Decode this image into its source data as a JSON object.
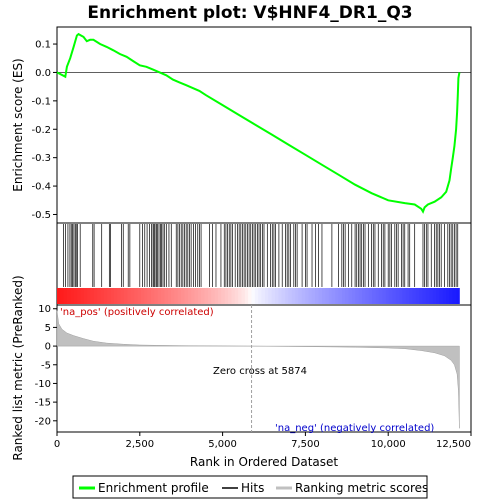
{
  "chart_data": [
    {
      "type": "line",
      "title": "Enrichment plot: V$HNF4_DR1_Q3",
      "ylabel": "Enrichment score (ES)",
      "xlim": [
        0,
        12500
      ],
      "ylim": [
        -0.53,
        0.16
      ],
      "yticks": [
        0.1,
        0.0,
        -0.1,
        -0.2,
        -0.3,
        -0.4,
        -0.5
      ],
      "ytick_labels": [
        "0.1",
        "0.0",
        "-0.1",
        "-0.2",
        "-0.3",
        "-0.4",
        "-0.5"
      ],
      "color": "#00ff00",
      "series": [
        {
          "name": "Enrichment profile",
          "x": [
            0,
            250,
            300,
            400,
            500,
            600,
            650,
            800,
            900,
            1000,
            1100,
            1300,
            1500,
            1700,
            1900,
            2100,
            2300,
            2500,
            2700,
            2900,
            3100,
            3300,
            3500,
            3700,
            3900,
            4100,
            4300,
            4500,
            5000,
            5500,
            6000,
            6500,
            7000,
            7500,
            8000,
            8500,
            9000,
            9500,
            10000,
            10500,
            10800,
            11000,
            11050,
            11100,
            11200,
            11400,
            11600,
            11750,
            11850,
            11900,
            11950,
            12000,
            12050,
            12080,
            12100,
            12120,
            12150
          ],
          "y": [
            0.0,
            -0.015,
            0.02,
            0.05,
            0.09,
            0.13,
            0.135,
            0.125,
            0.11,
            0.115,
            0.115,
            0.1,
            0.09,
            0.078,
            0.065,
            0.055,
            0.04,
            0.025,
            0.02,
            0.01,
            0.0,
            -0.01,
            -0.025,
            -0.035,
            -0.045,
            -0.055,
            -0.065,
            -0.08,
            -0.115,
            -0.15,
            -0.185,
            -0.22,
            -0.255,
            -0.29,
            -0.325,
            -0.36,
            -0.395,
            -0.425,
            -0.45,
            -0.46,
            -0.465,
            -0.48,
            -0.49,
            -0.475,
            -0.465,
            -0.455,
            -0.44,
            -0.42,
            -0.38,
            -0.34,
            -0.3,
            -0.26,
            -0.2,
            -0.14,
            -0.08,
            -0.02,
            0.0
          ]
        }
      ]
    },
    {
      "type": "barcode",
      "series_name": "Hits",
      "hit_ranks": [
        200,
        260,
        330,
        390,
        430,
        470,
        510,
        550,
        580,
        620,
        700,
        1080,
        1120,
        1350,
        1580,
        1620,
        1950,
        2000,
        2150,
        2200,
        2500,
        2580,
        2650,
        2720,
        2790,
        2850,
        2900,
        2930,
        2960,
        3000,
        3040,
        3080,
        3120,
        3160,
        3200,
        3240,
        3300,
        3380,
        3450,
        3600,
        3650,
        3700,
        3750,
        3800,
        3850,
        3900,
        3950,
        4000,
        4050,
        4120,
        4180,
        4250,
        4300,
        4350,
        4600,
        4700,
        4800,
        4950,
        5050,
        5100,
        5150,
        5200,
        5250,
        5300,
        5380,
        5450,
        5500,
        5550,
        5600,
        5650,
        5700,
        5750,
        5800,
        5850,
        5900,
        5950,
        6000,
        6050,
        6100,
        6150,
        6200,
        6250,
        6350,
        6450,
        6500,
        6550,
        6600,
        6700,
        6800,
        6900,
        6950,
        7000,
        7050,
        7150,
        7200,
        7250,
        7400,
        7500,
        7550,
        7700,
        7800,
        7900,
        8000,
        8300,
        8500,
        8600,
        8650,
        8700,
        8800,
        8900,
        9000,
        9050,
        9100,
        9150,
        9200,
        9250,
        9300,
        9400,
        9500,
        9550,
        9600,
        9700,
        9800,
        9850,
        9900,
        10000,
        10050,
        10100,
        10200,
        10250,
        10300,
        10400,
        10450,
        10500,
        10600,
        10650,
        10800,
        11050,
        11100,
        11150,
        11200,
        11300,
        11400,
        11450,
        11500,
        11550,
        11600,
        11700,
        11800,
        11850,
        11900,
        11950,
        12000,
        12050,
        12100
      ]
    },
    {
      "type": "area",
      "ylabel": "Ranked list metric (PreRanked)",
      "xlabel": "Rank in Ordered Dataset",
      "xlim": [
        0,
        12500
      ],
      "ylim": [
        -23,
        11
      ],
      "xticks": [
        0,
        2500,
        5000,
        7500,
        10000,
        12500
      ],
      "xtick_labels": [
        "0",
        "2,500",
        "5,000",
        "7,500",
        "10,000",
        "12,500"
      ],
      "yticks": [
        10,
        5,
        0,
        -5,
        -10,
        -15,
        -20
      ],
      "ytick_labels": [
        "10",
        "5",
        "0",
        "-5",
        "-10",
        "-15",
        "-20"
      ],
      "series_name": "Ranking metric scores",
      "x": [
        0,
        50,
        150,
        300,
        500,
        800,
        1100,
        1500,
        2000,
        2500,
        3000,
        4000,
        5000,
        5874,
        7000,
        8000,
        9000,
        10000,
        10500,
        11000,
        11400,
        11700,
        11900,
        12000,
        12080,
        12120,
        12150
      ],
      "y": [
        9.5,
        6.0,
        4.5,
        3.5,
        2.8,
        2.0,
        1.3,
        0.8,
        0.5,
        0.3,
        0.2,
        0.1,
        0.05,
        0.0,
        -0.1,
        -0.2,
        -0.3,
        -0.5,
        -0.7,
        -1.2,
        -1.8,
        -2.6,
        -3.8,
        -5.0,
        -7.5,
        -12.0,
        -22.0
      ],
      "annotations": {
        "positive": "'na_pos' (positively correlated)",
        "negative": "'na_neg' (negatively correlated)",
        "zero_cross": "Zero cross at 5874",
        "zero_cross_rank": 5874
      }
    }
  ],
  "legend": {
    "items": [
      {
        "label": "Enrichment profile",
        "color": "#00ff00"
      },
      {
        "label": "Hits",
        "color": "#000000"
      },
      {
        "label": "Ranking metric scores",
        "color": "#c0c0c0"
      }
    ]
  }
}
